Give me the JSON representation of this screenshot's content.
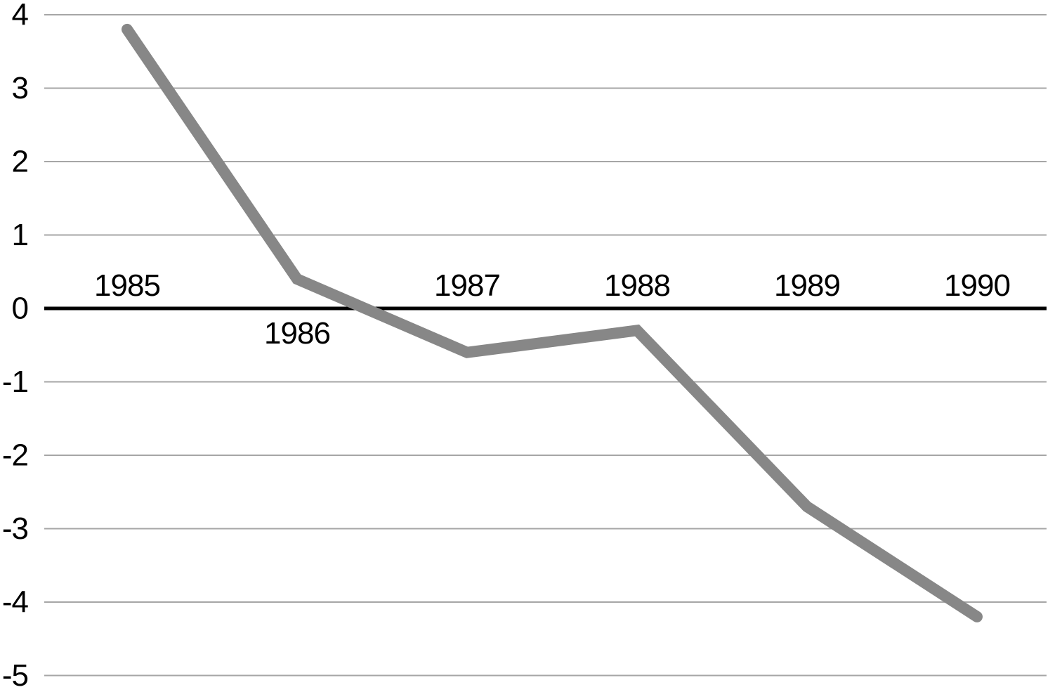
{
  "chart_data": {
    "type": "line",
    "title": "",
    "xlabel": "",
    "ylabel": "",
    "categories": [
      "1985",
      "1986",
      "1987",
      "1988",
      "1989",
      "1990"
    ],
    "series": [
      {
        "name": "value",
        "values": [
          3.8,
          0.4,
          -0.6,
          -0.3,
          -2.7,
          -4.2
        ]
      }
    ],
    "ylim": [
      -5,
      4
    ],
    "y_tick_step": 1,
    "y_tick_labels": [
      "4",
      "3",
      "2",
      "1",
      "0",
      "-1",
      "-2",
      "-3",
      "-4",
      "-5"
    ],
    "grid": "horizontal",
    "legend": "none",
    "zero_axis": true,
    "x_labels_below_axis": [
      "1986"
    ],
    "colors": {
      "line": "#878787",
      "gridline": "#a6a6a6",
      "zero_axis": "#000000",
      "label": "#000000",
      "background": "#ffffff"
    }
  }
}
